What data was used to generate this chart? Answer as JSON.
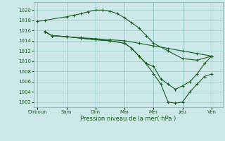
{
  "background_color": "#cce8e8",
  "grid_color": "#99cccc",
  "line_color": "#1a6020",
  "marker_color": "#1a6020",
  "xlabel": "Pression niveau de la mer( hPa )",
  "ylim": [
    1001,
    1021.5
  ],
  "yticks": [
    1002,
    1004,
    1006,
    1008,
    1010,
    1012,
    1014,
    1016,
    1018,
    1020
  ],
  "x_day_labels": [
    "Dirboun",
    "Sam",
    "Dim",
    "Mar",
    "Mer",
    "Jeu",
    "Ven"
  ],
  "figsize": [
    3.2,
    2.0
  ],
  "dpi": 100,
  "series1_x": [
    0,
    1,
    4,
    5,
    6,
    7,
    8,
    9,
    10,
    11,
    12,
    13,
    14,
    15,
    16,
    18,
    20,
    22,
    24
  ],
  "series1_y": [
    1017.8,
    1018.0,
    1018.7,
    1019.0,
    1019.3,
    1019.7,
    1020.0,
    1020.0,
    1019.8,
    1019.3,
    1018.5,
    1017.5,
    1016.5,
    1015.0,
    1013.5,
    1012.0,
    1010.5,
    1010.2,
    1011.0
  ],
  "series2_x": [
    1,
    2,
    4,
    6,
    8,
    10,
    12,
    14,
    16,
    18,
    20,
    22,
    24
  ],
  "series2_y": [
    1015.8,
    1015.0,
    1014.8,
    1014.6,
    1014.4,
    1014.2,
    1014.0,
    1013.5,
    1013.0,
    1012.5,
    1012.0,
    1011.5,
    1011.0
  ],
  "series3_x": [
    1,
    2,
    4,
    6,
    8,
    10,
    12,
    13,
    14,
    15,
    16,
    17,
    18,
    19,
    20,
    21,
    22,
    23,
    24
  ],
  "series3_y": [
    1015.8,
    1015.0,
    1014.8,
    1014.5,
    1014.2,
    1014.0,
    1013.5,
    1012.5,
    1011.0,
    1009.5,
    1007.5,
    1005.5,
    1002.0,
    1001.8,
    1002.0,
    1004.0,
    1005.5,
    1007.0,
    1007.5
  ],
  "series4_x": [
    1,
    2,
    4,
    6,
    8,
    10,
    12,
    13,
    14,
    15,
    16,
    17,
    18,
    19,
    20,
    21,
    22,
    23,
    24
  ],
  "series4_y": [
    1015.8,
    1015.0,
    1014.8,
    1014.5,
    1014.2,
    1014.0,
    1013.5,
    1012.5,
    1011.0,
    1009.5,
    1009.0,
    1006.5,
    1005.5,
    1004.5,
    1005.2,
    1006.0,
    1007.5,
    1009.5,
    1011.0
  ],
  "day_tick_x": [
    0,
    4,
    8,
    12,
    16,
    20,
    24
  ],
  "xlim": [
    -0.5,
    25.5
  ]
}
